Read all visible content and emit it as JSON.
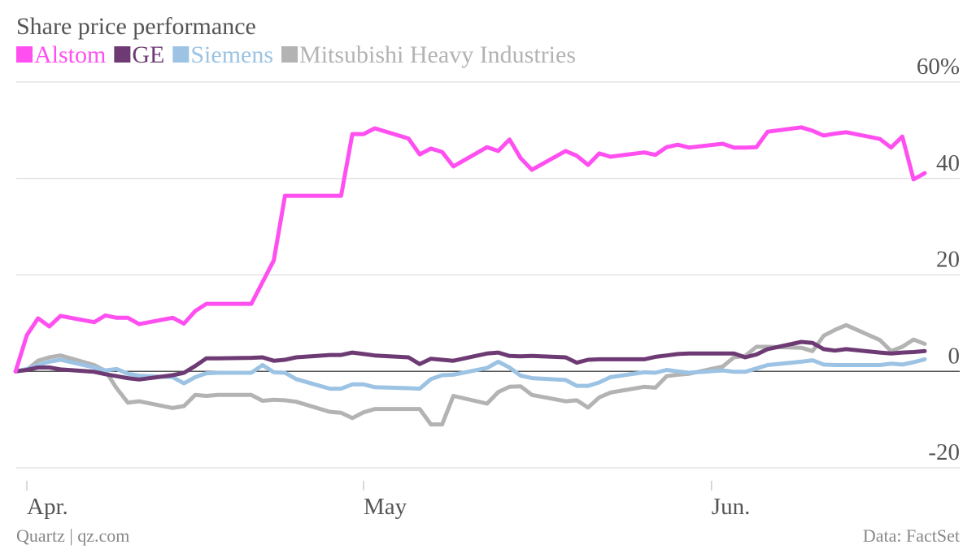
{
  "chart_data": {
    "type": "line",
    "title": "Share price performance",
    "source_left": "Quartz | qz.com",
    "source_right": "Data: FactSet",
    "x": [
      0,
      1,
      2,
      3,
      4,
      7,
      8,
      9,
      10,
      11,
      14,
      15,
      16,
      17,
      18,
      21,
      22,
      23,
      24,
      25,
      28,
      29,
      30,
      31,
      32,
      35,
      36,
      37,
      38,
      39,
      42,
      43,
      44,
      45,
      46,
      49,
      50,
      51,
      52,
      53,
      56,
      57,
      58,
      59,
      60,
      63,
      64,
      65,
      66,
      67,
      70,
      71,
      72,
      73,
      74,
      77,
      78,
      79,
      80,
      81
    ],
    "xlim": [
      0,
      84
    ],
    "xticks": [
      {
        "value": 1,
        "label": "Apr."
      },
      {
        "value": 31,
        "label": "May"
      },
      {
        "value": 62,
        "label": "Jun."
      }
    ],
    "ylim": [
      -20,
      60
    ],
    "yticks": [
      -20,
      0,
      20,
      40,
      {
        "value": 60,
        "label": "60%"
      }
    ],
    "grid": true,
    "legend": "top-left",
    "series": [
      {
        "name": "Alstom",
        "color": "#ff4ff0",
        "values": [
          0,
          7.5,
          11,
          9.3,
          11.5,
          10.2,
          11.6,
          11.1,
          11.1,
          9.8,
          11.1,
          9.9,
          12.5,
          14,
          14,
          14,
          18.5,
          23,
          36.4,
          36.4,
          36.4,
          36.4,
          49.2,
          49.2,
          50.4,
          48.3,
          45,
          46.2,
          45.5,
          42.5,
          46.5,
          45.7,
          48.1,
          44.2,
          41.8,
          45.7,
          44.7,
          42.8,
          45.2,
          44.5,
          45.4,
          44.9,
          46.5,
          47,
          46.4,
          47.2,
          46.4,
          46.4,
          46.5,
          49.7,
          50.6,
          49.9,
          48.9,
          49.3,
          49.6,
          48.2,
          46.4,
          48.7,
          39.8,
          41.1
        ]
      },
      {
        "name": "GE",
        "color": "#6e3a74",
        "values": [
          0,
          0.3,
          0.8,
          0.8,
          0.4,
          -0.1,
          -0.6,
          -1,
          -1.4,
          -1.7,
          -0.8,
          -0.3,
          1.1,
          2.7,
          2.7,
          2.8,
          2.9,
          2.2,
          2.4,
          2.9,
          3.4,
          3.4,
          3.9,
          3.6,
          3.3,
          2.9,
          1.5,
          2.6,
          2.4,
          2.2,
          3.7,
          3.9,
          3.2,
          3.1,
          3.2,
          2.9,
          1.8,
          2.4,
          2.5,
          2.5,
          2.5,
          3,
          3.3,
          3.6,
          3.7,
          3.7,
          3.7,
          2.9,
          3.5,
          4.6,
          6.1,
          5.9,
          4.6,
          4.3,
          4.6,
          3.9,
          3.7,
          3.9,
          4,
          4.2
        ]
      },
      {
        "name": "Siemens",
        "color": "#9cc3e4",
        "values": [
          0,
          0.5,
          1.3,
          2,
          2.4,
          0.8,
          0.2,
          0.5,
          -0.5,
          -0.9,
          -1.2,
          -2.5,
          -1.2,
          -0.4,
          -0.3,
          -0.3,
          1.3,
          -0.2,
          -0.3,
          -1.6,
          -3.6,
          -3.6,
          -2.7,
          -2.7,
          -3.3,
          -3.5,
          -3.6,
          -1.6,
          -0.8,
          -0.7,
          0.7,
          2,
          0.8,
          -0.9,
          -1.4,
          -1.8,
          -3,
          -3,
          -2.3,
          -1.2,
          -0.2,
          -0.3,
          0.3,
          0,
          -0.3,
          0.2,
          -0.1,
          -0.1,
          0.6,
          1.3,
          2,
          2.3,
          1.4,
          1.3,
          1.3,
          1.3,
          1.6,
          1.4,
          1.9,
          2.5
        ]
      },
      {
        "name": "Mitsubishi Heavy Industries",
        "color": "#b3b3b3",
        "values": [
          0,
          0.3,
          2.2,
          2.9,
          3.3,
          1.3,
          0.1,
          -3.5,
          -6.5,
          -6.2,
          -7.6,
          -7.2,
          -4.9,
          -5.1,
          -4.9,
          -4.9,
          -6.1,
          -5.9,
          -6,
          -6.3,
          -8.4,
          -8.6,
          -9.7,
          -8.5,
          -7.8,
          -7.8,
          -7.8,
          -11,
          -11,
          -5.1,
          -6.7,
          -4.3,
          -3.2,
          -3.1,
          -4.9,
          -6.2,
          -6,
          -7.5,
          -5.4,
          -4.4,
          -3.2,
          -3.4,
          -1,
          -0.7,
          -0.5,
          1,
          2.9,
          3.2,
          5.1,
          5.1,
          4.9,
          4.2,
          7.4,
          8.6,
          9.6,
          6.5,
          4.2,
          5.1,
          6.6,
          5.7
        ]
      }
    ]
  }
}
